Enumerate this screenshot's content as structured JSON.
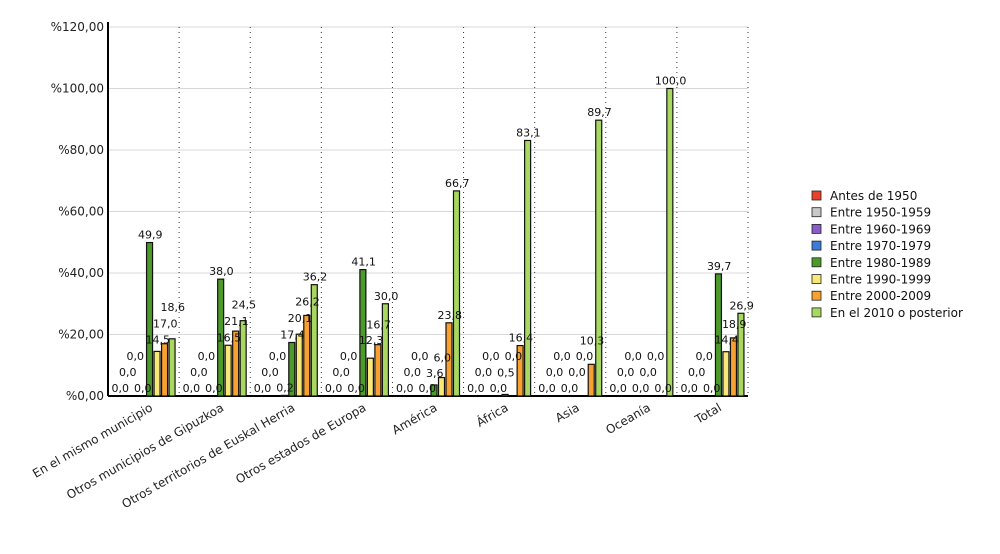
{
  "chart_data": {
    "type": "bar",
    "categories": [
      "En el mismo municipio",
      "Otros municipios de Gipuzkoa",
      "Otros territorios de Euskal Herria",
      "Otros estados de Europa",
      "América",
      "África",
      "Asia",
      "Oceanía",
      "Total"
    ],
    "ylim": [
      0,
      120
    ],
    "yticks": [
      "%0,00",
      "%20,00",
      "%40,00",
      "%60,00",
      "%80,00",
      "%100,00",
      "%120,00"
    ],
    "grid": true,
    "legend_position": "right",
    "series": [
      {
        "name": "Antes de 1950",
        "color": "#e8412c",
        "values": [
          0,
          0,
          0,
          0,
          0,
          0,
          0,
          0,
          0
        ]
      },
      {
        "name": "Entre 1950-1959",
        "color": "#c8c8c8",
        "values": [
          0,
          0,
          0,
          0,
          0,
          0,
          0,
          0,
          0
        ]
      },
      {
        "name": "Entre 1960-1969",
        "color": "#8a5cc8",
        "values": [
          0,
          0,
          0,
          0,
          0,
          0,
          0,
          0,
          0
        ]
      },
      {
        "name": "Entre 1970-1979",
        "color": "#3c7cd8",
        "values": [
          0,
          0,
          0.2,
          0,
          0,
          0,
          0,
          0,
          0
        ]
      },
      {
        "name": "Entre 1980-1989",
        "color": "#4c9a2a",
        "values": [
          49.9,
          38.0,
          17.4,
          41.1,
          3.6,
          0.5,
          0,
          0,
          39.7
        ]
      },
      {
        "name": "Entre 1990-1999",
        "color": "#f8e878",
        "values": [
          14.5,
          16.5,
          20.1,
          12.3,
          6.0,
          0,
          0,
          0,
          14.4
        ]
      },
      {
        "name": "Entre 2000-2009",
        "color": "#f8a030",
        "values": [
          17.0,
          21.1,
          26.2,
          16.7,
          23.8,
          16.4,
          10.3,
          0,
          18.9
        ]
      },
      {
        "name": "En el 2010 o posterior",
        "color": "#a8d860",
        "values": [
          18.6,
          24.5,
          36.2,
          30.0,
          66.7,
          83.1,
          89.7,
          100.0,
          26.9
        ]
      }
    ]
  }
}
